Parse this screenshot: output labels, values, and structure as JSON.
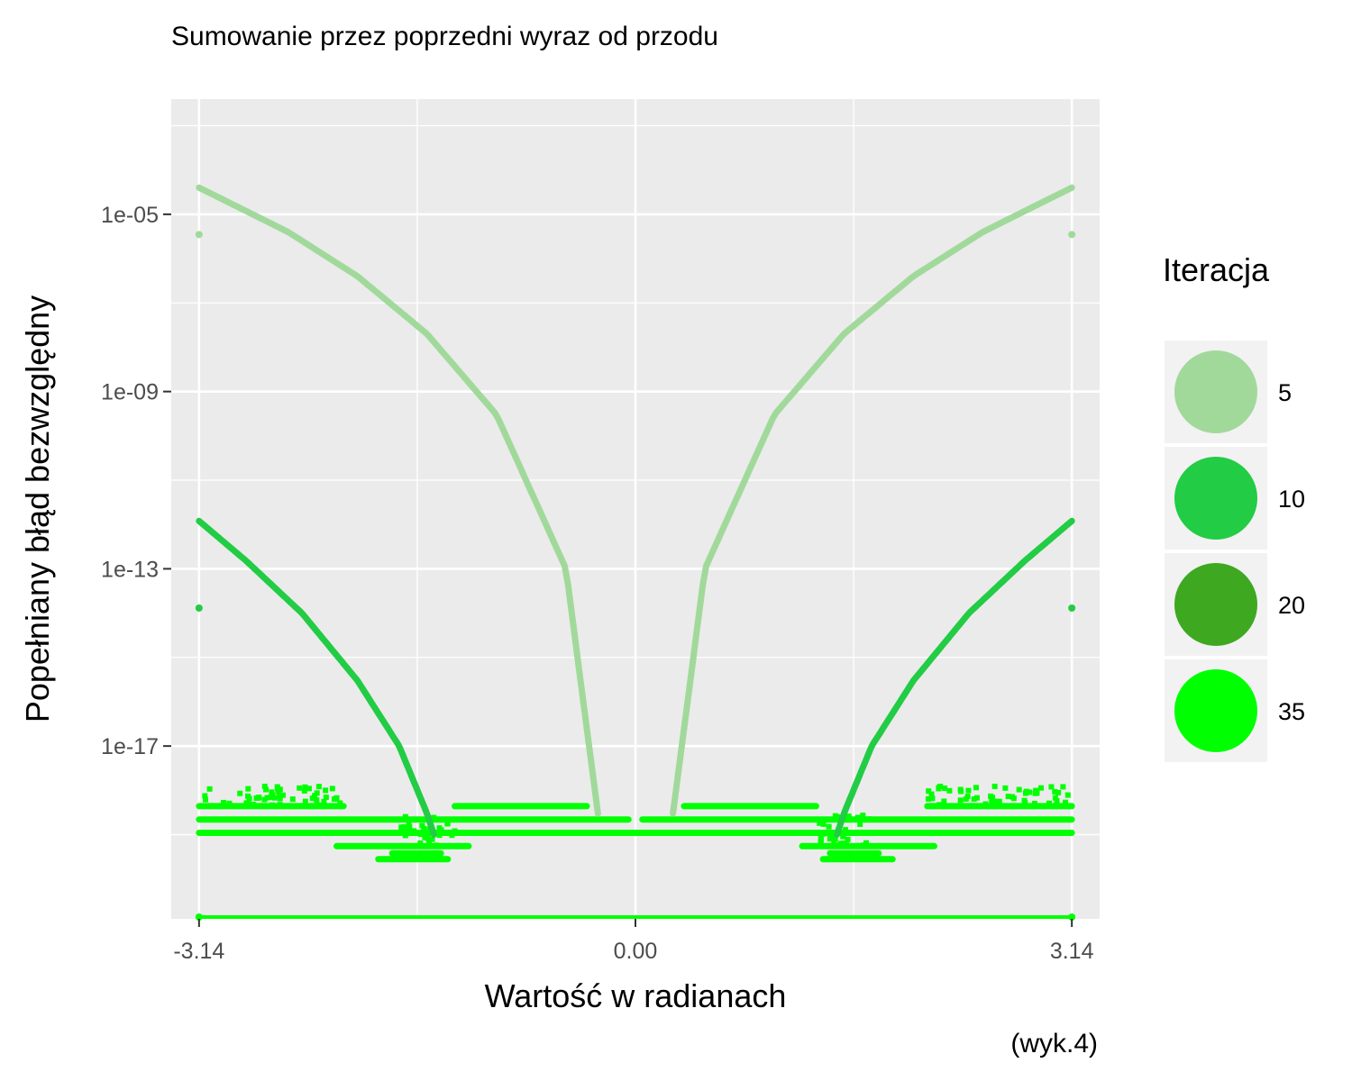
{
  "chart_data": {
    "type": "scatter",
    "title": "Sumowanie przez poprzedni wyraz od przodu",
    "xlabel": "Wartość w radianach",
    "ylabel": "Popełniany błąd bezwzględny",
    "caption": "(wyk.4)",
    "x_scale": "linear",
    "y_scale": "log10",
    "xlim": [
      -3.34,
      3.34
    ],
    "ylim_log10": [
      -20.9,
      -2.4
    ],
    "x_ticks": [
      -3.14,
      0.0,
      3.14
    ],
    "x_tick_labels": [
      "-3.14",
      "0.00",
      "3.14"
    ],
    "y_ticks": [
      1e-05,
      1e-09,
      1e-13,
      1e-17
    ],
    "y_tick_labels": [
      "1e-05",
      "1e-09",
      "1e-13",
      "1e-17"
    ],
    "grid": true,
    "legend": {
      "title": "Iteracja",
      "position": "right",
      "entries": [
        {
          "label": "5",
          "color": "#a1d99b"
        },
        {
          "label": "10",
          "color": "#22cc44"
        },
        {
          "label": "20",
          "color": "#3ea821"
        },
        {
          "label": "35",
          "color": "#00ff00"
        }
      ]
    },
    "series": [
      {
        "name": "5",
        "color": "#a1d99b",
        "description_points": [
          {
            "x": -3.14,
            "y": 4e-05
          },
          {
            "x": -2.5,
            "y": 4e-06
          },
          {
            "x": -2.0,
            "y": 4e-07
          },
          {
            "x": -1.5,
            "y": 2e-08
          },
          {
            "x": -1.0,
            "y": 3e-10
          },
          {
            "x": -0.5,
            "y": 1e-13
          },
          {
            "x": -0.27,
            "y": 3e-19
          },
          {
            "x": 0.27,
            "y": 3e-19
          },
          {
            "x": 0.5,
            "y": 1e-13
          },
          {
            "x": 1.0,
            "y": 3e-10
          },
          {
            "x": 1.5,
            "y": 2e-08
          },
          {
            "x": 2.0,
            "y": 4e-07
          },
          {
            "x": 2.5,
            "y": 4e-06
          },
          {
            "x": 3.14,
            "y": 4e-05
          }
        ],
        "outliers": [
          {
            "x": -3.14,
            "y": 3.5e-06
          },
          {
            "x": 3.14,
            "y": 3.5e-06
          }
        ]
      },
      {
        "name": "10",
        "color": "#22cc44",
        "description_points": [
          {
            "x": -3.14,
            "y": 1.2e-12
          },
          {
            "x": -2.8,
            "y": 1.5e-13
          },
          {
            "x": -2.4,
            "y": 1e-14
          },
          {
            "x": -2.0,
            "y": 3e-16
          },
          {
            "x": -1.7,
            "y": 1e-17
          },
          {
            "x": -1.5,
            "y": 3e-19
          },
          {
            "x": -1.45,
            "y": 1e-19
          },
          {
            "x": 1.45,
            "y": 1e-19
          },
          {
            "x": 1.5,
            "y": 3e-19
          },
          {
            "x": 1.7,
            "y": 1e-17
          },
          {
            "x": 2.0,
            "y": 3e-16
          },
          {
            "x": 2.4,
            "y": 1e-14
          },
          {
            "x": 2.8,
            "y": 1.5e-13
          },
          {
            "x": 3.14,
            "y": 1.2e-12
          }
        ],
        "outliers": [
          {
            "x": -3.14,
            "y": 1.3e-14
          },
          {
            "x": 3.14,
            "y": 1.3e-14
          }
        ]
      },
      {
        "name": "35",
        "color": "#00ff00",
        "floor_levels": [
          4.4e-19,
          2.2e-19,
          1.1e-19,
          5.5e-20,
          2.8e-20
        ],
        "zero_line": true
      }
    ]
  }
}
